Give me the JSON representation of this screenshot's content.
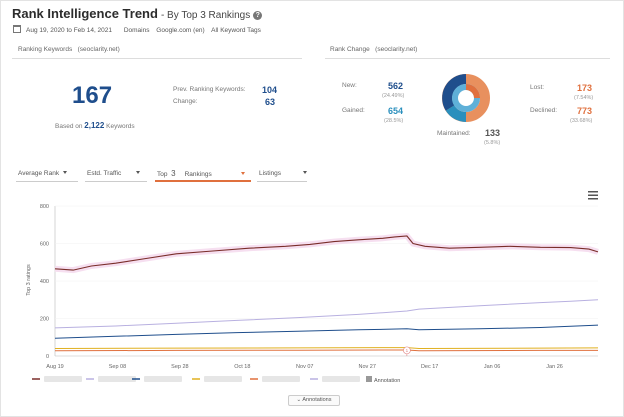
{
  "header": {
    "title": "Rank Intelligence Trend",
    "subtitle": "- By Top 3 Rankings",
    "date_range": "Aug 19, 2020 to Feb 14, 2021",
    "domains": "Domains",
    "engine": "Google.com (en)",
    "tags": "All Keyword Tags"
  },
  "ranking_keywords": {
    "heading": "Ranking Keywords",
    "site": "(seoclarity.net)",
    "total": "167",
    "based_on_prefix": "Based on",
    "based_on_count": "2,122",
    "based_on_suffix": "Keywords",
    "prev_label": "Prev. Ranking Keywords:",
    "prev_value": "104",
    "change_label": "Change:",
    "change_value": "63"
  },
  "rank_change": {
    "heading": "Rank Change",
    "site": "(seoclarity.net)",
    "new_label": "New:",
    "new_value": "562",
    "new_pct": "(24.49%)",
    "gained_label": "Gained:",
    "gained_value": "654",
    "gained_pct": "(28.5%)",
    "lost_label": "Lost:",
    "lost_value": "173",
    "lost_pct": "(7.54%)",
    "declined_label": "Declined:",
    "declined_value": "773",
    "declined_pct": "(33.68%)",
    "maintained_label": "Maintained:",
    "maintained_value": "133",
    "maintained_pct": "(5.8%)"
  },
  "controls": {
    "average_rank": "Average Rank",
    "estd_traffic": "Estd. Traffic",
    "top_label": "Top",
    "top_value": "3",
    "rankings": "Rankings",
    "listings": "Listings"
  },
  "colors": {
    "red": "#7a2e2a",
    "lavender": "#b8b0e0",
    "navy": "#1f4e8c",
    "gold": "#e0b020",
    "orange": "#e0703e",
    "gray": "#999999"
  },
  "legend": {
    "annotation_label": "Annotation"
  },
  "annotations_button": "Annotations",
  "annotation_marker": "1",
  "chart_data": {
    "type": "line",
    "ylabel": "Top 3 ratings",
    "ylim": [
      0,
      800
    ],
    "y_ticks": [
      "800",
      "600",
      "400",
      "200",
      "0"
    ],
    "x_ticks": [
      "Aug 19",
      "Sep 08",
      "Sep 28",
      "Oct 18",
      "Nov 07",
      "Nov 27",
      "Dec 17",
      "Jan 06",
      "Jan 26"
    ],
    "x_count": 180,
    "series": [
      {
        "color": "#7a2e2a",
        "points": [
          [
            0,
            465
          ],
          [
            6,
            458
          ],
          [
            12,
            480
          ],
          [
            20,
            495
          ],
          [
            30,
            520
          ],
          [
            40,
            545
          ],
          [
            52,
            560
          ],
          [
            64,
            575
          ],
          [
            76,
            585
          ],
          [
            84,
            595
          ],
          [
            92,
            610
          ],
          [
            100,
            620
          ],
          [
            108,
            628
          ],
          [
            112,
            635
          ],
          [
            116,
            640
          ],
          [
            118,
            600
          ],
          [
            122,
            585
          ],
          [
            130,
            575
          ],
          [
            140,
            580
          ],
          [
            150,
            585
          ],
          [
            160,
            580
          ],
          [
            170,
            578
          ],
          [
            176,
            570
          ],
          [
            179,
            555
          ]
        ]
      },
      {
        "color": "#b8b0e0",
        "points": [
          [
            0,
            150
          ],
          [
            20,
            160
          ],
          [
            40,
            175
          ],
          [
            60,
            190
          ],
          [
            80,
            205
          ],
          [
            100,
            222
          ],
          [
            112,
            235
          ],
          [
            116,
            240
          ],
          [
            120,
            250
          ],
          [
            140,
            268
          ],
          [
            160,
            285
          ],
          [
            170,
            292
          ],
          [
            179,
            300
          ]
        ]
      },
      {
        "color": "#1f4e8c",
        "points": [
          [
            0,
            95
          ],
          [
            20,
            105
          ],
          [
            40,
            115
          ],
          [
            60,
            125
          ],
          [
            80,
            132
          ],
          [
            100,
            140
          ],
          [
            116,
            145
          ],
          [
            120,
            140
          ],
          [
            140,
            145
          ],
          [
            160,
            152
          ],
          [
            179,
            165
          ]
        ]
      },
      {
        "color": "#e0b020",
        "points": [
          [
            0,
            40
          ],
          [
            40,
            42
          ],
          [
            80,
            43
          ],
          [
            116,
            45
          ],
          [
            120,
            40
          ],
          [
            160,
            42
          ],
          [
            179,
            43
          ]
        ]
      },
      {
        "color": "#e0703e",
        "points": [
          [
            0,
            28
          ],
          [
            40,
            30
          ],
          [
            80,
            31
          ],
          [
            116,
            32
          ],
          [
            120,
            28
          ],
          [
            160,
            30
          ],
          [
            179,
            30
          ]
        ]
      }
    ],
    "annotation_at_index": 116
  }
}
